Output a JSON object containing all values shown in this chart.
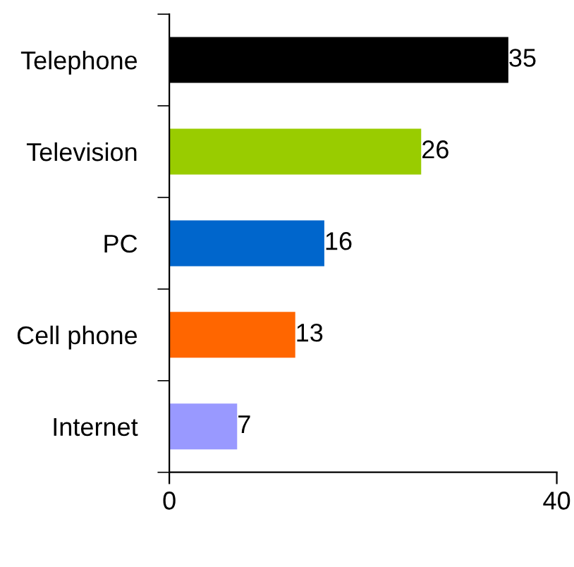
{
  "chart_data": {
    "type": "bar",
    "orientation": "horizontal",
    "categories": [
      "Telephone",
      "Television",
      "PC",
      "Cell phone",
      "Internet"
    ],
    "values": [
      35,
      26,
      16,
      13,
      7
    ],
    "colors": [
      "#000000",
      "#99cc00",
      "#0066cc",
      "#ff6600",
      "#9999ff"
    ],
    "xlim": [
      0,
      40
    ],
    "xticks": [
      0,
      40
    ],
    "data_labels": true,
    "grid": false,
    "legend": false
  }
}
